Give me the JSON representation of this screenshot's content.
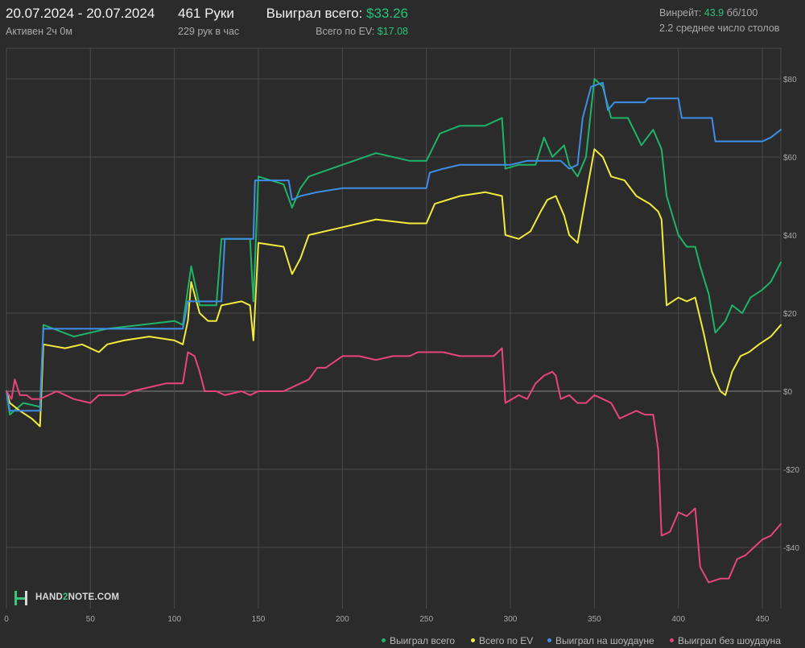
{
  "header": {
    "date_range": "20.07.2024 - 20.07.2024",
    "active": "Активен 2ч 0м",
    "hands": "461 Руки",
    "hands_per_hour": "229 рук в час",
    "won_label": "Выиграл всего:",
    "won_value": "$33.26",
    "ev_label": "Всего по EV:",
    "ev_value": "$17.08",
    "winrate_label": "Винрейт:",
    "winrate_value": "43.9",
    "winrate_unit": "бб/100",
    "tables": "2.2 среднее число столов"
  },
  "logo": {
    "prefix": "HAND",
    "two": "2",
    "suffix": "NOTE.COM"
  },
  "colors": {
    "background": "#2b2b2b",
    "grid": "#4a4a4a",
    "won": "#1fb36a",
    "ev": "#f2ea3c",
    "showdown": "#3e8ee8",
    "no_showdown": "#e8457a"
  },
  "chart_data": {
    "type": "line",
    "xlim": [
      0,
      461
    ],
    "ylim": [
      -50,
      82
    ],
    "x_ticks": [
      0,
      50,
      100,
      150,
      200,
      250,
      300,
      350,
      400,
      450
    ],
    "y_ticks": [
      80,
      60,
      40,
      20,
      0,
      -20,
      -40
    ],
    "y_tick_labels": [
      "$80",
      "$60",
      "$40",
      "$20",
      "$0",
      "-$20",
      "-$40"
    ],
    "legend": [
      "Выиграл всего",
      "Всего по EV",
      "Выиграл на шоудауне",
      "Выиграл без шоудауна"
    ],
    "series": [
      {
        "name": "Выиграл всего",
        "color": "#1fb36a",
        "points": [
          [
            0,
            0
          ],
          [
            2,
            -6
          ],
          [
            10,
            -3
          ],
          [
            20,
            -4
          ],
          [
            22,
            17
          ],
          [
            40,
            14
          ],
          [
            60,
            16
          ],
          [
            80,
            17
          ],
          [
            100,
            18
          ],
          [
            105,
            17
          ],
          [
            110,
            32
          ],
          [
            115,
            22
          ],
          [
            125,
            22
          ],
          [
            128,
            39
          ],
          [
            145,
            39
          ],
          [
            147,
            23
          ],
          [
            150,
            55
          ],
          [
            165,
            53
          ],
          [
            170,
            47
          ],
          [
            175,
            52
          ],
          [
            180,
            55
          ],
          [
            200,
            58
          ],
          [
            220,
            61
          ],
          [
            240,
            59
          ],
          [
            250,
            59
          ],
          [
            258,
            66
          ],
          [
            270,
            68
          ],
          [
            285,
            68
          ],
          [
            295,
            70
          ],
          [
            297,
            57
          ],
          [
            305,
            58
          ],
          [
            315,
            58
          ],
          [
            320,
            65
          ],
          [
            325,
            60
          ],
          [
            332,
            63
          ],
          [
            335,
            58
          ],
          [
            340,
            55
          ],
          [
            345,
            60
          ],
          [
            350,
            80
          ],
          [
            355,
            78
          ],
          [
            360,
            70
          ],
          [
            370,
            70
          ],
          [
            378,
            63
          ],
          [
            385,
            67
          ],
          [
            390,
            62
          ],
          [
            393,
            50
          ],
          [
            400,
            40
          ],
          [
            405,
            37
          ],
          [
            410,
            37
          ],
          [
            413,
            32
          ],
          [
            418,
            25
          ],
          [
            422,
            15
          ],
          [
            428,
            18
          ],
          [
            432,
            22
          ],
          [
            438,
            20
          ],
          [
            443,
            24
          ],
          [
            450,
            26
          ],
          [
            455,
            28
          ],
          [
            461,
            33
          ]
        ]
      },
      {
        "name": "Всего по EV",
        "color": "#f2ea3c",
        "points": [
          [
            0,
            0
          ],
          [
            2,
            -3
          ],
          [
            8,
            -5
          ],
          [
            15,
            -7
          ],
          [
            20,
            -9
          ],
          [
            22,
            12
          ],
          [
            35,
            11
          ],
          [
            45,
            12
          ],
          [
            55,
            10
          ],
          [
            60,
            12
          ],
          [
            70,
            13
          ],
          [
            85,
            14
          ],
          [
            100,
            13
          ],
          [
            105,
            12
          ],
          [
            108,
            18
          ],
          [
            110,
            28
          ],
          [
            115,
            20
          ],
          [
            120,
            18
          ],
          [
            125,
            18
          ],
          [
            128,
            22
          ],
          [
            140,
            23
          ],
          [
            145,
            22
          ],
          [
            147,
            13
          ],
          [
            150,
            38
          ],
          [
            165,
            37
          ],
          [
            170,
            30
          ],
          [
            175,
            34
          ],
          [
            180,
            40
          ],
          [
            200,
            42
          ],
          [
            220,
            44
          ],
          [
            240,
            43
          ],
          [
            250,
            43
          ],
          [
            255,
            48
          ],
          [
            270,
            50
          ],
          [
            285,
            51
          ],
          [
            295,
            50
          ],
          [
            297,
            40
          ],
          [
            305,
            39
          ],
          [
            312,
            41
          ],
          [
            318,
            46
          ],
          [
            322,
            49
          ],
          [
            327,
            50
          ],
          [
            332,
            45
          ],
          [
            335,
            40
          ],
          [
            340,
            38
          ],
          [
            345,
            50
          ],
          [
            350,
            62
          ],
          [
            355,
            60
          ],
          [
            360,
            55
          ],
          [
            368,
            54
          ],
          [
            375,
            50
          ],
          [
            383,
            48
          ],
          [
            388,
            46
          ],
          [
            390,
            44
          ],
          [
            393,
            22
          ],
          [
            400,
            24
          ],
          [
            405,
            23
          ],
          [
            410,
            24
          ],
          [
            415,
            15
          ],
          [
            420,
            5
          ],
          [
            425,
            0
          ],
          [
            428,
            -1
          ],
          [
            432,
            5
          ],
          [
            437,
            9
          ],
          [
            442,
            10
          ],
          [
            448,
            12
          ],
          [
            455,
            14
          ],
          [
            461,
            17
          ]
        ]
      },
      {
        "name": "Выиграл на шоудауне",
        "color": "#3e8ee8",
        "points": [
          [
            0,
            0
          ],
          [
            2,
            -5
          ],
          [
            20,
            -5
          ],
          [
            22,
            16
          ],
          [
            105,
            16
          ],
          [
            108,
            23
          ],
          [
            128,
            23
          ],
          [
            130,
            39
          ],
          [
            145,
            39
          ],
          [
            147,
            39
          ],
          [
            148,
            54
          ],
          [
            168,
            54
          ],
          [
            170,
            49
          ],
          [
            175,
            50
          ],
          [
            185,
            51
          ],
          [
            200,
            52
          ],
          [
            230,
            52
          ],
          [
            250,
            52
          ],
          [
            252,
            56
          ],
          [
            260,
            57
          ],
          [
            270,
            58
          ],
          [
            290,
            58
          ],
          [
            300,
            58
          ],
          [
            310,
            59
          ],
          [
            330,
            59
          ],
          [
            335,
            57
          ],
          [
            340,
            58
          ],
          [
            343,
            70
          ],
          [
            348,
            78
          ],
          [
            355,
            79
          ],
          [
            358,
            72
          ],
          [
            362,
            74
          ],
          [
            380,
            74
          ],
          [
            382,
            75
          ],
          [
            400,
            75
          ],
          [
            402,
            70
          ],
          [
            410,
            70
          ],
          [
            420,
            70
          ],
          [
            422,
            64
          ],
          [
            450,
            64
          ],
          [
            455,
            65
          ],
          [
            461,
            67
          ]
        ]
      },
      {
        "name": "Выиграл без шоудауна",
        "color": "#e8457a",
        "points": [
          [
            0,
            0
          ],
          [
            3,
            -2
          ],
          [
            5,
            3
          ],
          [
            8,
            -1
          ],
          [
            12,
            -1
          ],
          [
            15,
            -2
          ],
          [
            20,
            -2
          ],
          [
            25,
            -1
          ],
          [
            30,
            0
          ],
          [
            40,
            -2
          ],
          [
            50,
            -3
          ],
          [
            55,
            -1
          ],
          [
            60,
            -1
          ],
          [
            70,
            -1
          ],
          [
            75,
            0
          ],
          [
            85,
            1
          ],
          [
            95,
            2
          ],
          [
            100,
            2
          ],
          [
            105,
            2
          ],
          [
            108,
            10
          ],
          [
            112,
            9
          ],
          [
            115,
            5
          ],
          [
            118,
            0
          ],
          [
            125,
            0
          ],
          [
            130,
            -1
          ],
          [
            140,
            0
          ],
          [
            145,
            -1
          ],
          [
            150,
            0
          ],
          [
            165,
            0
          ],
          [
            170,
            1
          ],
          [
            175,
            2
          ],
          [
            180,
            3
          ],
          [
            185,
            6
          ],
          [
            190,
            6
          ],
          [
            200,
            9
          ],
          [
            210,
            9
          ],
          [
            220,
            8
          ],
          [
            230,
            9
          ],
          [
            240,
            9
          ],
          [
            245,
            10
          ],
          [
            250,
            10
          ],
          [
            260,
            10
          ],
          [
            270,
            9
          ],
          [
            280,
            9
          ],
          [
            290,
            9
          ],
          [
            295,
            11
          ],
          [
            297,
            -3
          ],
          [
            305,
            -1
          ],
          [
            310,
            -2
          ],
          [
            315,
            2
          ],
          [
            320,
            4
          ],
          [
            325,
            5
          ],
          [
            327,
            4
          ],
          [
            330,
            -2
          ],
          [
            335,
            -1
          ],
          [
            340,
            -3
          ],
          [
            345,
            -3
          ],
          [
            350,
            -1
          ],
          [
            355,
            -2
          ],
          [
            360,
            -3
          ],
          [
            365,
            -7
          ],
          [
            370,
            -6
          ],
          [
            375,
            -5
          ],
          [
            380,
            -6
          ],
          [
            385,
            -6
          ],
          [
            388,
            -15
          ],
          [
            390,
            -37
          ],
          [
            395,
            -36
          ],
          [
            400,
            -31
          ],
          [
            405,
            -32
          ],
          [
            410,
            -30
          ],
          [
            413,
            -45
          ],
          [
            418,
            -49
          ],
          [
            425,
            -48
          ],
          [
            430,
            -48
          ],
          [
            435,
            -43
          ],
          [
            440,
            -42
          ],
          [
            445,
            -40
          ],
          [
            450,
            -38
          ],
          [
            455,
            -37
          ],
          [
            461,
            -34
          ]
        ]
      }
    ]
  }
}
